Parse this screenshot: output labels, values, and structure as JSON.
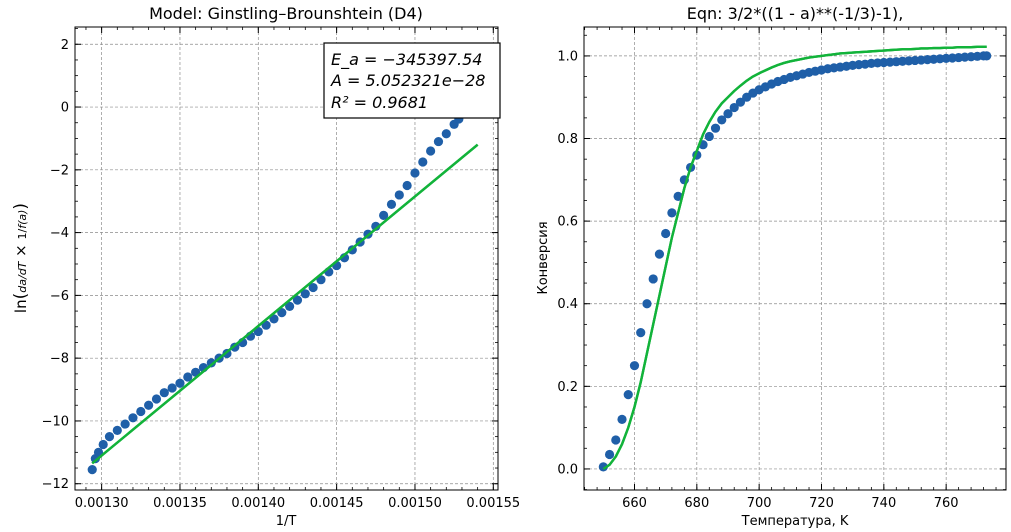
{
  "chart_data": [
    {
      "type": "scatter",
      "title": "Model: Ginstling–Brounshtein (D4)",
      "xlabel": "1/T",
      "ylabel": "ln(da/dT × 1/f(a))",
      "xlim": [
        0.001283,
        0.001553
      ],
      "ylim": [
        -12.2,
        2.55
      ],
      "xticks": [
        "0.00130",
        "0.00135",
        "0.00140",
        "0.00145",
        "0.00150",
        "0.00155"
      ],
      "xtick_values": [
        0.0013,
        0.00135,
        0.0014,
        0.00145,
        0.0015,
        0.00155
      ],
      "yticks": [
        "−12",
        "−10",
        "−8",
        "−6",
        "−4",
        "−2",
        "0",
        "2"
      ],
      "ytick_values": [
        -12,
        -10,
        -8,
        -6,
        -4,
        -2,
        0,
        2
      ],
      "grid": true,
      "annotation": {
        "lines": [
          "E_a = −345397.54",
          "A = 5.052321e−28",
          "R² = 0.9681"
        ],
        "placement": "top-right"
      },
      "series": [
        {
          "kind": "points",
          "color": "#1f5fa8",
          "x": [
            0.001294,
            0.001296,
            0.001298,
            0.001301,
            0.001305,
            0.00131,
            0.001315,
            0.00132,
            0.001325,
            0.00133,
            0.001335,
            0.00134,
            0.001345,
            0.00135,
            0.001355,
            0.00136,
            0.001365,
            0.00137,
            0.001375,
            0.00138,
            0.001385,
            0.00139,
            0.001395,
            0.0014,
            0.001405,
            0.00141,
            0.001415,
            0.00142,
            0.001425,
            0.00143,
            0.001435,
            0.00144,
            0.001445,
            0.00145,
            0.001455,
            0.00146,
            0.001465,
            0.00147,
            0.001475,
            0.00148,
            0.001485,
            0.00149,
            0.001495,
            0.0015,
            0.001505,
            0.00151,
            0.001515,
            0.00152,
            0.001525,
            0.001528,
            0.00153
          ],
          "y": [
            -11.55,
            -11.2,
            -11.0,
            -10.75,
            -10.5,
            -10.3,
            -10.1,
            -9.9,
            -9.7,
            -9.5,
            -9.3,
            -9.1,
            -8.95,
            -8.8,
            -8.6,
            -8.45,
            -8.3,
            -8.15,
            -8.0,
            -7.85,
            -7.65,
            -7.5,
            -7.3,
            -7.15,
            -6.95,
            -6.75,
            -6.55,
            -6.35,
            -6.15,
            -5.95,
            -5.75,
            -5.5,
            -5.25,
            -5.05,
            -4.8,
            -4.55,
            -4.3,
            -4.05,
            -3.8,
            -3.45,
            -3.1,
            -2.8,
            -2.5,
            -2.1,
            -1.75,
            -1.4,
            -1.1,
            -0.85,
            -0.55,
            -0.38,
            -0.2
          ]
        },
        {
          "kind": "line",
          "color": "#12b33a",
          "x": [
            0.001294,
            0.00154
          ],
          "y": [
            -11.35,
            -1.2
          ]
        }
      ]
    },
    {
      "type": "scatter",
      "title": "Eqn: 3/2*((1 - a)**(-1/3)-1),",
      "xlabel": "Температура, K",
      "ylabel": "Конверсия",
      "xlim": [
        643.8,
        779.2
      ],
      "ylim": [
        -0.051,
        1.07
      ],
      "xticks": [
        "660",
        "680",
        "700",
        "720",
        "740",
        "760"
      ],
      "xtick_values": [
        660,
        680,
        700,
        720,
        740,
        760
      ],
      "yticks": [
        "0.0",
        "0.2",
        "0.4",
        "0.6",
        "0.8",
        "1.0"
      ],
      "ytick_values": [
        0,
        0.2,
        0.4,
        0.6,
        0.8,
        1.0
      ],
      "grid": true,
      "series": [
        {
          "kind": "points",
          "color": "#1f5fa8",
          "x": [
            650,
            652,
            654,
            656,
            658,
            660,
            662,
            664,
            666,
            668,
            670,
            672,
            674,
            676,
            678,
            680,
            682,
            684,
            686,
            688,
            690,
            692,
            694,
            696,
            698,
            700,
            702,
            704,
            706,
            708,
            710,
            712,
            714,
            716,
            718,
            720,
            722,
            724,
            726,
            728,
            730,
            732,
            734,
            736,
            738,
            740,
            742,
            744,
            746,
            748,
            750,
            752,
            754,
            756,
            758,
            760,
            762,
            764,
            766,
            768,
            770,
            772,
            773
          ],
          "y": [
            0.005,
            0.035,
            0.07,
            0.12,
            0.18,
            0.25,
            0.33,
            0.4,
            0.46,
            0.52,
            0.57,
            0.62,
            0.66,
            0.7,
            0.73,
            0.76,
            0.785,
            0.805,
            0.825,
            0.845,
            0.86,
            0.875,
            0.888,
            0.9,
            0.91,
            0.918,
            0.925,
            0.932,
            0.938,
            0.943,
            0.948,
            0.952,
            0.956,
            0.96,
            0.963,
            0.966,
            0.969,
            0.971,
            0.973,
            0.975,
            0.977,
            0.979,
            0.98,
            0.982,
            0.983,
            0.984,
            0.985,
            0.986,
            0.987,
            0.988,
            0.989,
            0.99,
            0.991,
            0.992,
            0.993,
            0.994,
            0.995,
            0.996,
            0.997,
            0.998,
            0.999,
            1.0,
            1.0
          ]
        },
        {
          "kind": "line",
          "color": "#12b33a",
          "x": [
            650,
            652,
            654,
            656,
            658,
            660,
            662,
            664,
            666,
            668,
            670,
            672,
            674,
            676,
            678,
            680,
            682,
            684,
            686,
            688,
            690,
            692,
            694,
            696,
            698,
            700,
            702,
            704,
            706,
            708,
            710,
            712,
            714,
            716,
            718,
            720,
            722,
            724,
            726,
            728,
            730,
            732,
            734,
            736,
            738,
            740,
            742,
            744,
            746,
            748,
            750,
            752,
            754,
            756,
            758,
            760,
            762,
            764,
            766,
            768,
            770,
            772,
            773
          ],
          "y": [
            0.0,
            0.01,
            0.03,
            0.06,
            0.1,
            0.15,
            0.21,
            0.28,
            0.35,
            0.42,
            0.49,
            0.56,
            0.62,
            0.68,
            0.73,
            0.77,
            0.81,
            0.84,
            0.865,
            0.885,
            0.9,
            0.915,
            0.928,
            0.94,
            0.95,
            0.958,
            0.965,
            0.972,
            0.978,
            0.983,
            0.987,
            0.99,
            0.993,
            0.996,
            0.998,
            1.0,
            1.002,
            1.004,
            1.006,
            1.007,
            1.008,
            1.009,
            1.01,
            1.011,
            1.012,
            1.013,
            1.014,
            1.015,
            1.016,
            1.016,
            1.017,
            1.018,
            1.018,
            1.019,
            1.019,
            1.02,
            1.02,
            1.021,
            1.021,
            1.021,
            1.022,
            1.022,
            1.022
          ]
        }
      ]
    }
  ]
}
